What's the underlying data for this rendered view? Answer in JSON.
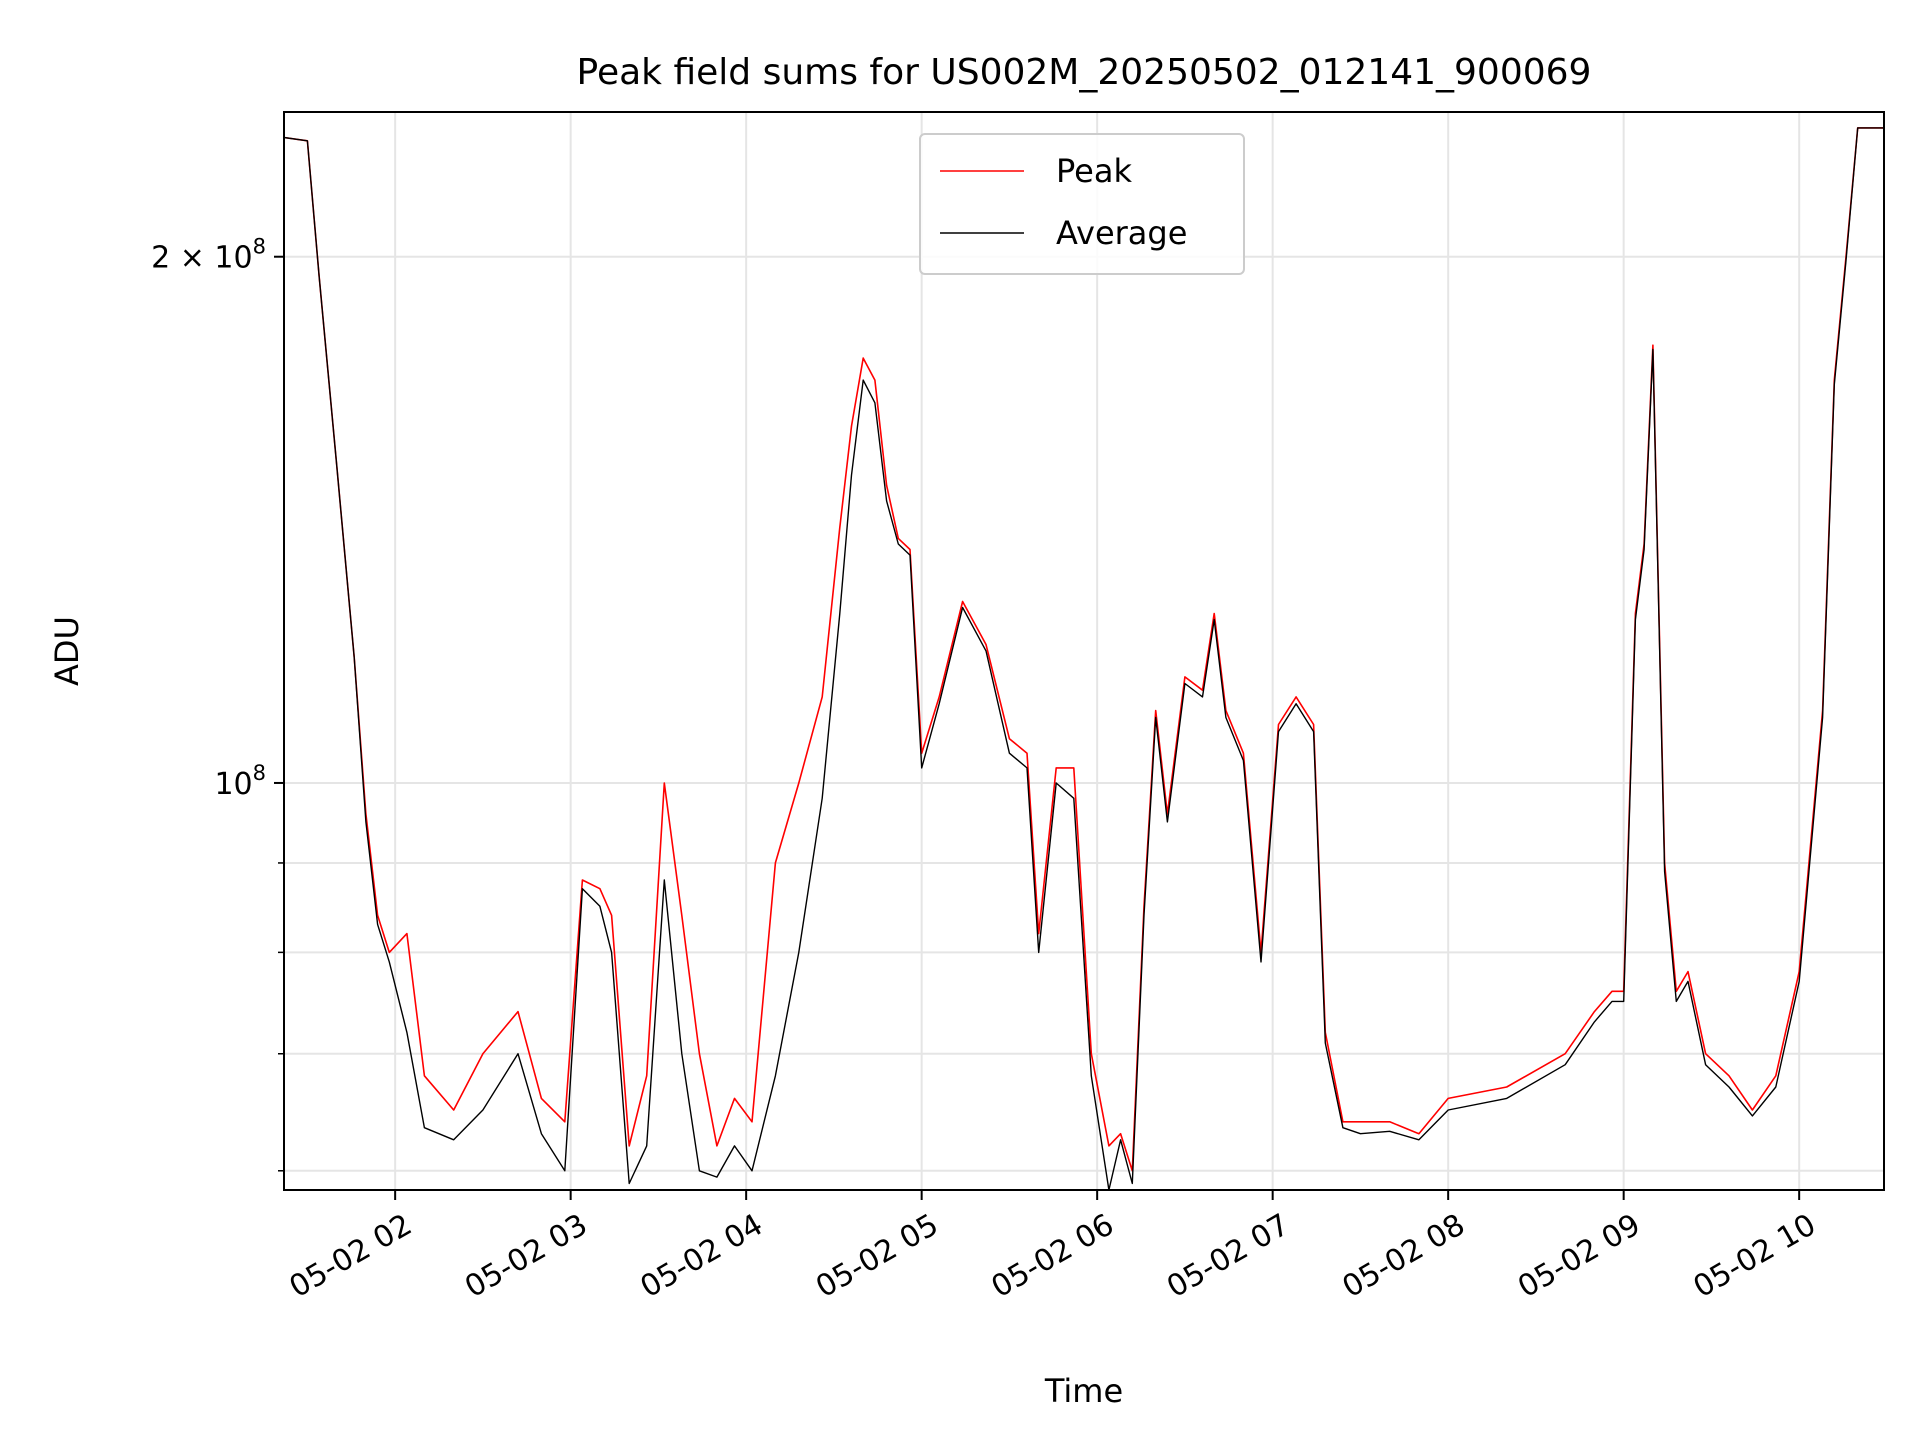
{
  "chart_data": {
    "type": "line",
    "title": "Peak field sums for US002M_20250502_012141_900069",
    "xlabel": "Time",
    "ylabel": "ADU",
    "x_scale": "time",
    "y_scale": "log",
    "xlim": [
      "2025-05-02 01:22",
      "2025-05-02 10:29"
    ],
    "ylim": [
      58500000,
      242000000
    ],
    "y_ticks": [
      {
        "value": 200000000,
        "label_text": "2 × 10",
        "label_exp": "8"
      },
      {
        "value": 100000000,
        "label_text": "10",
        "label_exp": "8"
      }
    ],
    "x_tick_labels": [
      "05-02 02",
      "05-02 03",
      "05-02 04",
      "05-02 05",
      "05-02 06",
      "05-02 07",
      "05-02 08",
      "05-02 09",
      "05-02 10"
    ],
    "grid": true,
    "legend_position": "upper center",
    "series": [
      {
        "name": "Peak",
        "color": "#ff0000",
        "x": [
          "2025-05-02 01:22",
          "2025-05-02 01:30",
          "2025-05-02 01:34",
          "2025-05-02 01:40",
          "2025-05-02 01:46",
          "2025-05-02 01:50",
          "2025-05-02 01:54",
          "2025-05-02 01:58",
          "2025-05-02 02:04",
          "2025-05-02 02:10",
          "2025-05-02 02:20",
          "2025-05-02 02:30",
          "2025-05-02 02:42",
          "2025-05-02 02:50",
          "2025-05-02 02:58",
          "2025-05-02 03:04",
          "2025-05-02 03:10",
          "2025-05-02 03:14",
          "2025-05-02 03:20",
          "2025-05-02 03:26",
          "2025-05-02 03:32",
          "2025-05-02 03:38",
          "2025-05-02 03:44",
          "2025-05-02 03:50",
          "2025-05-02 03:56",
          "2025-05-02 04:02",
          "2025-05-02 04:10",
          "2025-05-02 04:18",
          "2025-05-02 04:26",
          "2025-05-02 04:32",
          "2025-05-02 04:36",
          "2025-05-02 04:40",
          "2025-05-02 04:44",
          "2025-05-02 04:48",
          "2025-05-02 04:52",
          "2025-05-02 04:56",
          "2025-05-02 05:00",
          "2025-05-02 05:06",
          "2025-05-02 05:14",
          "2025-05-02 05:22",
          "2025-05-02 05:30",
          "2025-05-02 05:36",
          "2025-05-02 05:40",
          "2025-05-02 05:46",
          "2025-05-02 05:52",
          "2025-05-02 05:58",
          "2025-05-02 06:04",
          "2025-05-02 06:08",
          "2025-05-02 06:12",
          "2025-05-02 06:16",
          "2025-05-02 06:20",
          "2025-05-02 06:24",
          "2025-05-02 06:30",
          "2025-05-02 06:36",
          "2025-05-02 06:40",
          "2025-05-02 06:44",
          "2025-05-02 06:50",
          "2025-05-02 06:56",
          "2025-05-02 07:02",
          "2025-05-02 07:08",
          "2025-05-02 07:14",
          "2025-05-02 07:18",
          "2025-05-02 07:24",
          "2025-05-02 07:30",
          "2025-05-02 07:40",
          "2025-05-02 07:50",
          "2025-05-02 08:00",
          "2025-05-02 08:20",
          "2025-05-02 08:40",
          "2025-05-02 08:50",
          "2025-05-02 08:56",
          "2025-05-02 09:00",
          "2025-05-02 09:04",
          "2025-05-02 09:07",
          "2025-05-02 09:10",
          "2025-05-02 09:14",
          "2025-05-02 09:18",
          "2025-05-02 09:22",
          "2025-05-02 09:28",
          "2025-05-02 09:36",
          "2025-05-02 09:44",
          "2025-05-02 09:52",
          "2025-05-02 10:00",
          "2025-05-02 10:08",
          "2025-05-02 10:12",
          "2025-05-02 10:16",
          "2025-05-02 10:20",
          "2025-05-02 10:29"
        ],
        "y": [
          234000000,
          233000000,
          195000000,
          152000000,
          118000000,
          96000000,
          84000000,
          80000000,
          82000000,
          68000000,
          65000000,
          70000000,
          74000000,
          66000000,
          64000000,
          88000000,
          87000000,
          84000000,
          62000000,
          68000000,
          100000000,
          84000000,
          70000000,
          62000000,
          66000000,
          64000000,
          90000000,
          100000000,
          112000000,
          140000000,
          160000000,
          175000000,
          170000000,
          148000000,
          138000000,
          136000000,
          104000000,
          112000000,
          127000000,
          120000000,
          106000000,
          104000000,
          82000000,
          102000000,
          102000000,
          70000000,
          62000000,
          63000000,
          60000000,
          85000000,
          110000000,
          96000000,
          115000000,
          113000000,
          125000000,
          110000000,
          104000000,
          80000000,
          108000000,
          112000000,
          108000000,
          72000000,
          64000000,
          64000000,
          64000000,
          63000000,
          66000000,
          67000000,
          70000000,
          74000000,
          76000000,
          76000000,
          125000000,
          137000000,
          178000000,
          90000000,
          76000000,
          78000000,
          70000000,
          68000000,
          65000000,
          68000000,
          78000000,
          110000000,
          170000000,
          200000000,
          237000000,
          237000000
        ]
      },
      {
        "name": "Average",
        "color": "#000000",
        "x": [
          "2025-05-02 01:22",
          "2025-05-02 01:30",
          "2025-05-02 01:34",
          "2025-05-02 01:40",
          "2025-05-02 01:46",
          "2025-05-02 01:50",
          "2025-05-02 01:54",
          "2025-05-02 01:58",
          "2025-05-02 02:04",
          "2025-05-02 02:10",
          "2025-05-02 02:20",
          "2025-05-02 02:30",
          "2025-05-02 02:42",
          "2025-05-02 02:50",
          "2025-05-02 02:58",
          "2025-05-02 03:04",
          "2025-05-02 03:10",
          "2025-05-02 03:14",
          "2025-05-02 03:20",
          "2025-05-02 03:26",
          "2025-05-02 03:32",
          "2025-05-02 03:38",
          "2025-05-02 03:44",
          "2025-05-02 03:50",
          "2025-05-02 03:56",
          "2025-05-02 04:02",
          "2025-05-02 04:10",
          "2025-05-02 04:18",
          "2025-05-02 04:26",
          "2025-05-02 04:32",
          "2025-05-02 04:36",
          "2025-05-02 04:40",
          "2025-05-02 04:44",
          "2025-05-02 04:48",
          "2025-05-02 04:52",
          "2025-05-02 04:56",
          "2025-05-02 05:00",
          "2025-05-02 05:06",
          "2025-05-02 05:14",
          "2025-05-02 05:22",
          "2025-05-02 05:30",
          "2025-05-02 05:36",
          "2025-05-02 05:40",
          "2025-05-02 05:46",
          "2025-05-02 05:52",
          "2025-05-02 05:58",
          "2025-05-02 06:04",
          "2025-05-02 06:08",
          "2025-05-02 06:12",
          "2025-05-02 06:16",
          "2025-05-02 06:20",
          "2025-05-02 06:24",
          "2025-05-02 06:30",
          "2025-05-02 06:36",
          "2025-05-02 06:40",
          "2025-05-02 06:44",
          "2025-05-02 06:50",
          "2025-05-02 06:56",
          "2025-05-02 07:02",
          "2025-05-02 07:08",
          "2025-05-02 07:14",
          "2025-05-02 07:18",
          "2025-05-02 07:24",
          "2025-05-02 07:30",
          "2025-05-02 07:40",
          "2025-05-02 07:50",
          "2025-05-02 08:00",
          "2025-05-02 08:20",
          "2025-05-02 08:40",
          "2025-05-02 08:50",
          "2025-05-02 08:56",
          "2025-05-02 09:00",
          "2025-05-02 09:04",
          "2025-05-02 09:07",
          "2025-05-02 09:10",
          "2025-05-02 09:14",
          "2025-05-02 09:18",
          "2025-05-02 09:22",
          "2025-05-02 09:28",
          "2025-05-02 09:36",
          "2025-05-02 09:44",
          "2025-05-02 09:52",
          "2025-05-02 10:00",
          "2025-05-02 10:08",
          "2025-05-02 10:12",
          "2025-05-02 10:16",
          "2025-05-02 10:20",
          "2025-05-02 10:29"
        ],
        "y": [
          234000000,
          233000000,
          195000000,
          152000000,
          118000000,
          95000000,
          83000000,
          79000000,
          72000000,
          63500000,
          62500000,
          65000000,
          70000000,
          63000000,
          60000000,
          87000000,
          85000000,
          80000000,
          59000000,
          62000000,
          88000000,
          70000000,
          60000000,
          59500000,
          62000000,
          60000000,
          68000000,
          80000000,
          98000000,
          125000000,
          150000000,
          170000000,
          165000000,
          145000000,
          137000000,
          135000000,
          102000000,
          111000000,
          126000000,
          119000000,
          104000000,
          102000000,
          80000000,
          100000000,
          98000000,
          68000000,
          58500000,
          62500000,
          59000000,
          84000000,
          109000000,
          95000000,
          114000000,
          112000000,
          124000000,
          109000000,
          103000000,
          79000000,
          107000000,
          111000000,
          107000000,
          71000000,
          63500000,
          63000000,
          63200000,
          62500000,
          65000000,
          66000000,
          69000000,
          73000000,
          75000000,
          75000000,
          124000000,
          136000000,
          177000000,
          89000000,
          75000000,
          77000000,
          69000000,
          67000000,
          64500000,
          67000000,
          77000000,
          109000000,
          169000000,
          199000000,
          237000000,
          237000000
        ]
      }
    ]
  }
}
